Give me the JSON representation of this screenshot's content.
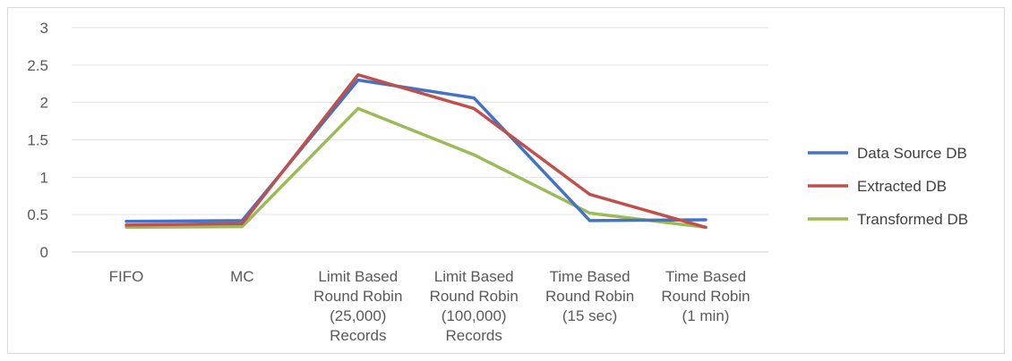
{
  "chart_data": {
    "type": "line",
    "title": "",
    "xlabel": "",
    "ylabel": "",
    "ylim": [
      0,
      3
    ],
    "y_ticks": [
      "0",
      "0.5",
      "1",
      "1.5",
      "2",
      "2.5",
      "3"
    ],
    "grid": "horizontal",
    "legend_position": "right",
    "categories": [
      [
        "FIFO"
      ],
      [
        "MC"
      ],
      [
        "Limit Based",
        "Round Robin",
        "(25,000)",
        "Records"
      ],
      [
        "Limit Based",
        "Round Robin",
        "(100,000)",
        "Records"
      ],
      [
        "Time Based",
        "Round Robin",
        "(15 sec)"
      ],
      [
        "Time Based",
        "Round Robin",
        "(1 min)"
      ]
    ],
    "series": [
      {
        "name": "Data Source DB",
        "color": "#4472C4",
        "values": [
          0.41,
          0.42,
          2.3,
          2.06,
          0.42,
          0.43
        ]
      },
      {
        "name": "Extracted DB",
        "color": "#C0504D",
        "values": [
          0.36,
          0.38,
          2.37,
          1.92,
          0.77,
          0.33
        ]
      },
      {
        "name": "Transformed DB",
        "color": "#9BBB59",
        "values": [
          0.33,
          0.34,
          1.92,
          1.3,
          0.52,
          0.33
        ]
      }
    ]
  }
}
